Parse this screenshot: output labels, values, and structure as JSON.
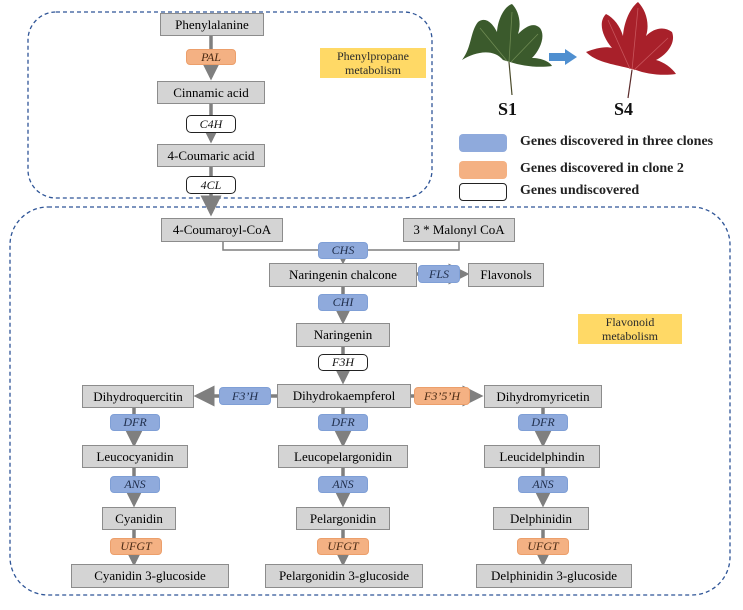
{
  "tags": {
    "phenylpropane": "Phenylpropane metabolism",
    "flavonoid": "Flavonoid metabolism"
  },
  "stages": {
    "s1": "S1",
    "s4": "S4"
  },
  "legend": {
    "three_clones": "Genes discovered in three clones",
    "clone2": "Genes discovered in clone 2",
    "undiscovered": "Genes undiscovered"
  },
  "compounds": {
    "phenylalanine": "Phenylalanine",
    "cinnamic_acid": "Cinnamic acid",
    "coumaric_acid": "4-Coumaric acid",
    "coumaroyl_coa": "4-Coumaroyl-CoA",
    "malonyl_coa": "3 * Malonyl CoA",
    "naringenin_chalcone": "Naringenin chalcone",
    "flavonols": "Flavonols",
    "naringenin": "Naringenin",
    "dihydroquercitin": "Dihydroquercitin",
    "dihydrokaempferol": "Dihydrokaempferol",
    "dihydromyricetin": "Dihydromyricetin",
    "leucocyanidin": "Leucocyanidin",
    "leucopelargonidin": "Leucopelargonidin",
    "leucidelphindin": "Leucidelphindin",
    "cyanidin": "Cyanidin",
    "pelargonidin": "Pelargonidin",
    "delphinidin": "Delphinidin",
    "cyanidin_glc": "Cyanidin 3-glucoside",
    "pelargonidin_glc": "Pelargonidin 3-glucoside",
    "delphinidin_glc": "Delphinidin 3-glucoside"
  },
  "genes": {
    "pal": "PAL",
    "c4h": "C4H",
    "cl4": "4CL",
    "chs": "CHS",
    "fls": "FLS",
    "chi": "CHI",
    "f3h": "F3H",
    "f3ph": "F3’H",
    "f35h": "F3’5’H",
    "dfr_left": "DFR",
    "dfr_mid": "DFR",
    "dfr_right": "DFR",
    "ans_left": "ANS",
    "ans_mid": "ANS",
    "ans_right": "ANS",
    "ufgt_left": "UFGT",
    "ufgt_mid": "UFGT",
    "ufgt_right": "UFGT"
  },
  "colors": {
    "three_clones": "#8faadc",
    "clone2": "#f4b183",
    "undiscovered": "#ffffff",
    "compound_fill": "#d4d4d4",
    "region_border": "#2f5597",
    "arrow": "#7f7f7f",
    "tag_fill": "#ffd966",
    "leaf_green": "#3b5a2c",
    "leaf_red": "#a8202a",
    "stage_arrow": "#4f8fd0"
  },
  "icons": [
    "green-leaf-icon",
    "red-leaf-icon",
    "stage-arrow-icon"
  ]
}
